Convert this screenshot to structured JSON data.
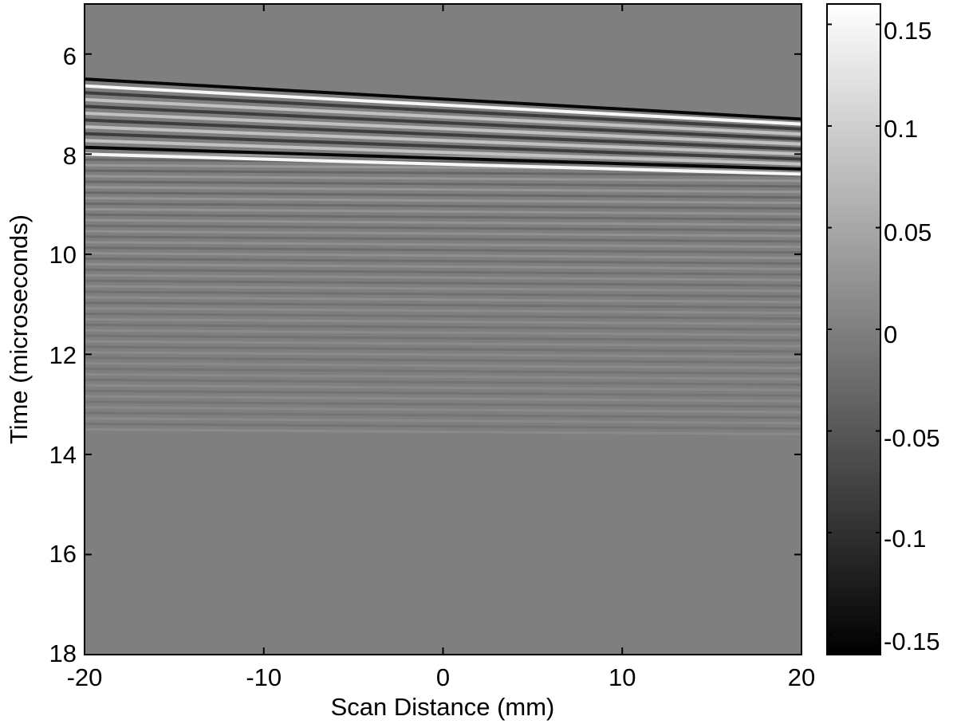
{
  "chart_data": {
    "type": "heatmap",
    "title": "",
    "xlabel": "Scan Distance (mm)",
    "ylabel": "Time (microseconds)",
    "xlim": [
      -20,
      20
    ],
    "ylim": [
      5,
      18
    ],
    "y_reversed": true,
    "x_ticks": [
      "-20",
      "-10",
      "0",
      "10",
      "20"
    ],
    "y_ticks": [
      "6",
      "8",
      "10",
      "12",
      "14",
      "16",
      "18"
    ],
    "colormap": "gray",
    "clim": [
      -0.16,
      0.16
    ],
    "colorbar_ticks": [
      "0.15",
      "0.1",
      "0.05",
      "0",
      "-0.05",
      "-0.1",
      "-0.15"
    ],
    "colors": {
      "background": "#ffffff",
      "field": "#7f7f7f",
      "axes": "#000000"
    },
    "features": [
      {
        "name": "reflection band",
        "time_at_x_min": [
          6.5,
          8.0
        ],
        "time_at_x_max": [
          7.3,
          8.4
        ],
        "amplitude": 0.15
      },
      {
        "name": "horizontal ringing",
        "time_range": [
          8.0,
          13.5
        ],
        "amplitude": 0.04
      }
    ]
  }
}
